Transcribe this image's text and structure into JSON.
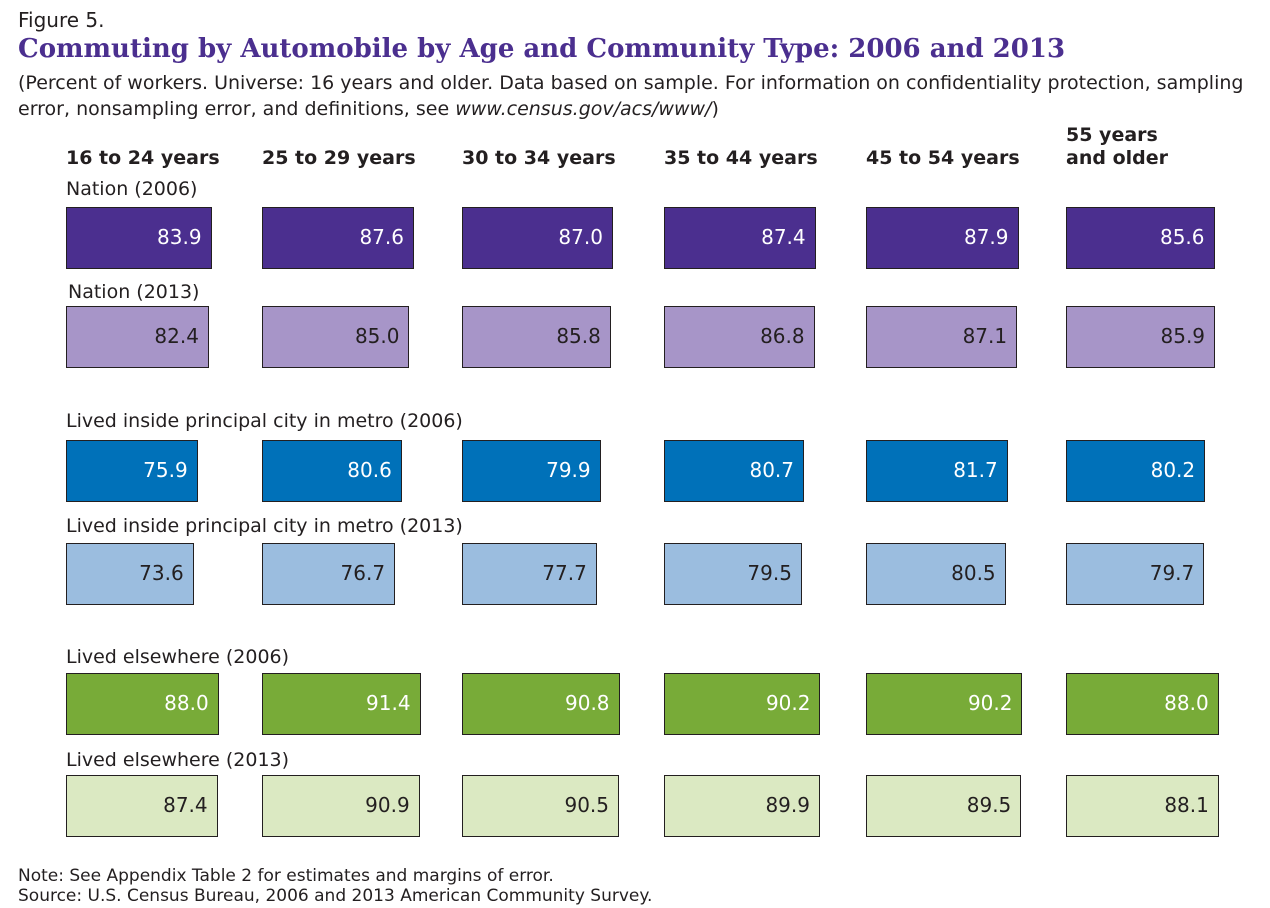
{
  "chart_data": {
    "type": "tile-bar",
    "figure_label": "Figure 5.",
    "title": "Commuting by Automobile by Age and Community Type: 2006 and 2013",
    "subtitle": [
      "(Percent of workers. Universe: 16 years and older. Data based on sample. For information on confidentiality protection, sampling error, nonsampling error, and definitions, see ",
      "www.census.gov/acs/www/",
      ")"
    ],
    "categories": [
      "16 to 24 years",
      "25 to 29 years",
      "30 to 34 years",
      "35 to 44 years",
      "45 to 54 years",
      "55 years and older"
    ],
    "series": [
      {
        "name": "Nation (2006)",
        "color": "#4b2f8f",
        "label_color": "#ffffff",
        "values": [
          83.9,
          87.6,
          87.0,
          87.4,
          87.9,
          85.6
        ],
        "value_labels": [
          "83.9",
          "87.6",
          "87.0",
          "87.4",
          "87.9",
          "85.6"
        ]
      },
      {
        "name": "Nation (2013)",
        "color": "#a795c8",
        "label_color": "#231f20",
        "values": [
          82.4,
          85.0,
          85.8,
          86.8,
          87.1,
          85.9
        ],
        "value_labels": [
          "82.4",
          "85.0",
          "85.8",
          "86.8",
          "87.1",
          "85.9"
        ]
      },
      {
        "name": "Lived inside principal city in metro (2006)",
        "color": "#0071b9",
        "label_color": "#ffffff",
        "values": [
          75.9,
          80.6,
          79.9,
          80.7,
          81.7,
          80.2
        ],
        "value_labels": [
          "75.9",
          "80.6",
          "79.9",
          "80.7",
          "81.7",
          "80.2"
        ]
      },
      {
        "name": "Lived inside principal city in metro (2013)",
        "color": "#9bbddf",
        "label_color": "#231f20",
        "values": [
          73.6,
          76.7,
          77.7,
          79.5,
          80.5,
          79.7
        ],
        "value_labels": [
          "73.6",
          "76.7",
          "77.7",
          "79.5",
          "80.5",
          "79.7"
        ]
      },
      {
        "name": "Lived elsewhere (2006)",
        "color": "#78ab38",
        "label_color": "#ffffff",
        "values": [
          88.0,
          91.4,
          90.8,
          90.2,
          90.2,
          88.0
        ],
        "value_labels": [
          "88.0",
          "91.4",
          "90.8",
          "90.2",
          "90.2",
          "88.0"
        ]
      },
      {
        "name": "Lived elsewhere (2013)",
        "color": "#dbe9c2",
        "label_color": "#231f20",
        "values": [
          87.4,
          90.9,
          90.5,
          89.9,
          89.5,
          88.1
        ],
        "value_labels": [
          "87.4",
          "90.9",
          "90.5",
          "89.9",
          "89.5",
          "88.1"
        ]
      }
    ],
    "notes": [
      "Note: See Appendix Table 2 for estimates and margins of error.",
      "Source: U.S. Census Bureau, 2006 and 2013 American Community Survey."
    ]
  }
}
